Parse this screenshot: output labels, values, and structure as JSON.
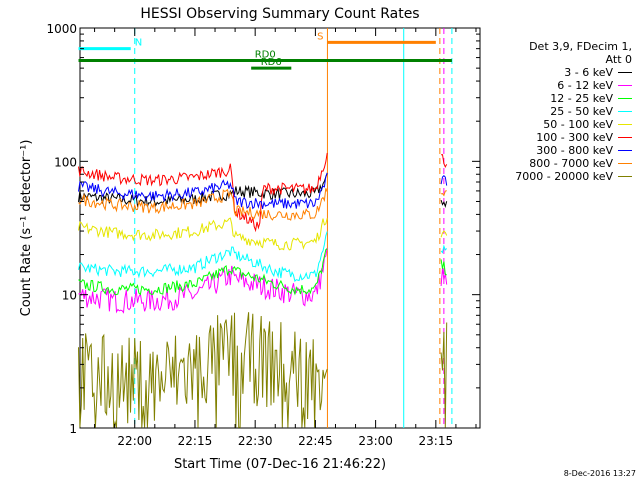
{
  "chart_data": {
    "type": "line",
    "title": "HESSI Observing Summary Count Rates",
    "xlabel": "Start Time (07-Dec-16 21:46:22)",
    "ylabel": "Count Rate (s⁻¹ detector⁻¹)",
    "y_scale": "log",
    "ylim": [
      1,
      1000
    ],
    "y_ticks": [
      "1",
      "10",
      "100",
      "1000"
    ],
    "x_ticks": [
      "22:00",
      "22:15",
      "22:30",
      "22:45",
      "23:00",
      "23:15"
    ],
    "xlim": [
      "21:46:22",
      "23:26:00"
    ],
    "legend_title": [
      "Det 3,9, FDecim 1,",
      "Att 0"
    ],
    "legend_placement": "right",
    "series": [
      {
        "name": "3 - 6 keV",
        "color": "#000000",
        "x": [
          "21:46",
          "21:55",
          "22:05",
          "22:15",
          "22:20",
          "22:24",
          "22:25",
          "22:35",
          "22:40",
          "22:45",
          "22:48",
          "23:16",
          "23:18"
        ],
        "values": [
          55,
          52,
          50,
          52,
          55,
          57,
          60,
          57,
          57,
          57,
          75,
          52,
          48
        ]
      },
      {
        "name": "6 - 12 keV",
        "color": "#ff00ff",
        "x": [
          "21:46",
          "21:55",
          "22:05",
          "22:15",
          "22:20",
          "22:24",
          "22:25",
          "22:35",
          "22:40",
          "22:45",
          "22:48",
          "23:16",
          "23:18"
        ],
        "values": [
          10,
          9,
          9,
          10,
          12,
          14,
          13,
          11,
          10,
          10,
          20,
          14,
          12
        ]
      },
      {
        "name": "12 - 25 keV",
        "color": "#00ff00",
        "x": [
          "21:46",
          "21:55",
          "22:05",
          "22:15",
          "22:20",
          "22:24",
          "22:25",
          "22:35",
          "22:40",
          "22:45",
          "22:48",
          "23:16",
          "23:18"
        ],
        "values": [
          12,
          11,
          11,
          12,
          14,
          16,
          15,
          12,
          11,
          11,
          22,
          17,
          15
        ]
      },
      {
        "name": "25 - 50 keV",
        "color": "#00ffff",
        "x": [
          "21:46",
          "21:55",
          "22:05",
          "22:15",
          "22:20",
          "22:24",
          "22:25",
          "22:35",
          "22:40",
          "22:45",
          "22:48",
          "23:16",
          "23:18"
        ],
        "values": [
          16,
          15,
          15,
          16,
          19,
          21,
          20,
          15,
          14,
          14,
          28,
          22,
          20
        ]
      },
      {
        "name": "50 - 100 keV",
        "color": "#e6e600",
        "x": [
          "21:46",
          "21:55",
          "22:05",
          "22:15",
          "22:20",
          "22:24",
          "22:25",
          "22:35",
          "22:40",
          "22:45",
          "22:48",
          "23:16",
          "23:18"
        ],
        "values": [
          32,
          29,
          28,
          30,
          33,
          35,
          27,
          24,
          24,
          25,
          40,
          30,
          28
        ]
      },
      {
        "name": "100 - 300 keV",
        "color": "#ff0000",
        "x": [
          "21:46",
          "21:55",
          "22:05",
          "22:15",
          "22:20",
          "22:24",
          "22:25",
          "22:28",
          "22:31",
          "22:32",
          "22:40",
          "22:45",
          "22:48",
          "23:16",
          "23:18"
        ],
        "values": [
          85,
          75,
          72,
          76,
          82,
          87,
          42,
          37,
          32,
          63,
          62,
          62,
          115,
          110,
          95
        ]
      },
      {
        "name": "300 - 800 keV",
        "color": "#0000ff",
        "x": [
          "21:46",
          "21:55",
          "22:05",
          "22:15",
          "22:20",
          "22:24",
          "22:25",
          "22:35",
          "22:40",
          "22:45",
          "22:48",
          "23:16",
          "23:18"
        ],
        "values": [
          65,
          58,
          55,
          58,
          63,
          67,
          50,
          48,
          48,
          48,
          75,
          72,
          70
        ]
      },
      {
        "name": "800 - 7000 keV",
        "color": "#ff8000",
        "x": [
          "21:46",
          "21:55",
          "22:05",
          "22:15",
          "22:20",
          "22:24",
          "22:25",
          "22:35",
          "22:40",
          "22:45",
          "22:48",
          "23:16",
          "23:18"
        ],
        "values": [
          52,
          47,
          45,
          48,
          53,
          57,
          42,
          40,
          40,
          40,
          62,
          60,
          58
        ]
      },
      {
        "name": "7000 - 20000 keV",
        "color": "#808000",
        "x": [
          "21:46",
          "21:55",
          "22:05",
          "22:15",
          "22:20",
          "22:24",
          "22:25",
          "22:35",
          "22:40",
          "22:45",
          "22:48",
          "23:16",
          "23:18"
        ],
        "values": [
          2.5,
          2.2,
          2.2,
          2.8,
          3.2,
          3.5,
          3.5,
          3,
          2.8,
          2.5,
          4,
          4,
          3.5
        ]
      }
    ],
    "annotations": [
      {
        "text": "N",
        "color": "#00ffff",
        "y": 700,
        "from": "21:46",
        "to": "21:59"
      },
      {
        "text": "RD0",
        "color": "#008000",
        "y": 570,
        "from": "21:46",
        "to": "23:19"
      },
      {
        "text": "RD6",
        "color": "#008000",
        "y": 500,
        "from": "22:29",
        "to": "22:39"
      },
      {
        "text": "S",
        "color": "#ff8000",
        "y": 780,
        "from": "22:48",
        "to": "23:15"
      }
    ],
    "vertical_markers": [
      {
        "x": "22:00",
        "color": "#00ffff",
        "style": "dashed"
      },
      {
        "x": "22:48",
        "color": "#ff8000",
        "style": "solid"
      },
      {
        "x": "23:07",
        "color": "#00ffff",
        "style": "solid"
      },
      {
        "x": "23:16",
        "color": "#ff8000",
        "style": "dashed"
      },
      {
        "x": "23:17",
        "color": "#ff00ff",
        "style": "dashed"
      },
      {
        "x": "23:19",
        "color": "#00ffff",
        "style": "dashed"
      }
    ]
  },
  "footer": {
    "date": "8-Dec-2016 13:27"
  }
}
